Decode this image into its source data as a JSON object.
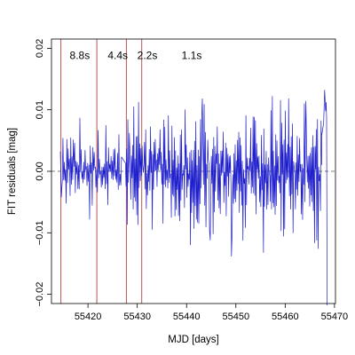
{
  "chart_data": {
    "type": "line",
    "title": "",
    "xlabel": "MJD [days]",
    "ylabel": "FIT residuals [mag]",
    "xlim": [
      55412.6,
      55470.2
    ],
    "ylim": [
      -0.0215,
      0.0215
    ],
    "x_ticks": [
      {
        "value": 55420,
        "label": "55420"
      },
      {
        "value": 55430,
        "label": "55430"
      },
      {
        "value": 55440,
        "label": "55440"
      },
      {
        "value": 55450,
        "label": "55450"
      },
      {
        "value": 55460,
        "label": "55460"
      },
      {
        "value": 55470,
        "label": "55470"
      }
    ],
    "y_ticks": [
      {
        "value": -0.02,
        "label": "−0.02"
      },
      {
        "value": -0.01,
        "label": "−0.01"
      },
      {
        "value": 0.0,
        "label": "0.00"
      },
      {
        "value": 0.01,
        "label": "0.01"
      },
      {
        "value": 0.02,
        "label": "0.02"
      }
    ],
    "zero_line": {
      "y": 0,
      "style": "dashed",
      "color": "#555555"
    },
    "vertical_lines": [
      {
        "x": 55414.5,
        "color": "#c06464"
      },
      {
        "x": 55421.8,
        "color": "#c06464"
      },
      {
        "x": 55427.8,
        "color": "#c06464"
      },
      {
        "x": 55430.9,
        "color": "#c06464"
      }
    ],
    "annotations": [
      {
        "text": "8.8s",
        "x": 55416.3,
        "y": 0.0188
      },
      {
        "text": "4.4s",
        "x": 55424.0,
        "y": 0.0188
      },
      {
        "text": "2.2s",
        "x": 55430.0,
        "y": 0.0188
      },
      {
        "text": "1.1s",
        "x": 55439.0,
        "y": 0.0188
      }
    ],
    "series": [
      {
        "color": "#1e1ecc",
        "segments": [
          {
            "x_start": 55414.4,
            "x_end": 55426.8,
            "n": 95,
            "amp": 0.0042,
            "seed": 11
          },
          {
            "x_start": 55427.6,
            "x_end": 55467.4,
            "n": 330,
            "amp": 0.0068,
            "seed": 29
          }
        ],
        "spikes": [
          {
            "x": 55414.6,
            "y": -0.0042
          },
          {
            "x": 55421.6,
            "y": -0.0026
          },
          {
            "x": 55428.4,
            "y": 0.0062
          },
          {
            "x": 55443.2,
            "y": 0.0118
          },
          {
            "x": 55444.8,
            "y": -0.0112
          },
          {
            "x": 55449.1,
            "y": -0.0138
          },
          {
            "x": 55455.6,
            "y": -0.0132
          },
          {
            "x": 55457.4,
            "y": 0.0122
          },
          {
            "x": 55460.7,
            "y": 0.0118
          },
          {
            "x": 55464.2,
            "y": 0.0114
          },
          {
            "x": 55466.4,
            "y": -0.0112
          }
        ],
        "tail": [
          {
            "x": 55467.4,
            "y": 0.0058
          },
          {
            "x": 55467.8,
            "y": 0.0078
          },
          {
            "x": 55468.0,
            "y": 0.0132
          },
          {
            "x": 55468.2,
            "y": 0.0098
          },
          {
            "x": 55468.3,
            "y": 0.0112
          },
          {
            "x": 55468.4,
            "y": 0.0088
          },
          {
            "x": 55468.5,
            "y": -0.0218
          }
        ]
      }
    ]
  }
}
